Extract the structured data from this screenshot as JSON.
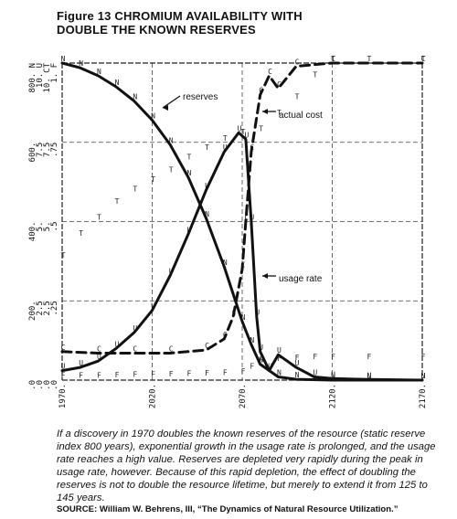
{
  "title": {
    "line1": "Figure 13 CHROMIUM AVAILABILITY WITH",
    "line2": "DOUBLE THE KNOWN RESERVES"
  },
  "caption": "If a discovery in 1970 doubles the known reserves of the resource (static reserve index 800 years), exponential growth in the usage rate is prolonged, and the usage rate reaches a high value. Reserves are depleted very rapidly during the peak in usage rate, however. Because of this rapid depletion, the effect of doubling the reserves is not to double the resource lifetime, but merely to extend it from 125 to 145 years.",
  "source": "SOURCE: William W. Behrens, III, “The Dynamics of Natural Resource Utilization.”",
  "chart_data": {
    "type": "line",
    "x_ticks": [
      "1970.",
      "2020.",
      "2070.",
      "2120.",
      "2170."
    ],
    "y_tick_columns": [
      [
        "800. N",
        "10. U",
        "10. CT",
        "1. F"
      ],
      [
        "600.",
        "7.5",
        "7.5",
        ".75"
      ],
      [
        "400.",
        "5.",
        "5.",
        ".5"
      ],
      [
        "200.",
        "2.5",
        "2.5",
        ".25"
      ],
      [
        ".0",
        ".0",
        ".0",
        ".0"
      ]
    ],
    "xlim": [
      1970,
      2170
    ],
    "ylim_reserves": [
      0,
      800
    ],
    "grid": true,
    "annotations": [
      "reserves",
      "actual cost",
      "usage rate"
    ],
    "series": [
      {
        "name": "reserves",
        "marker": "N",
        "style": "solid",
        "x": [
          1970,
          1980,
          1990,
          2000,
          2010,
          2020,
          2030,
          2040,
          2050,
          2060,
          2070,
          2075,
          2080,
          2090,
          2100,
          2120,
          2140,
          2170
        ],
        "y": [
          800,
          788,
          768,
          740,
          704,
          656,
          594,
          512,
          408,
          286,
          148,
          90,
          40,
          8,
          2,
          0,
          0,
          0
        ]
      },
      {
        "name": "usage rate",
        "marker": "U",
        "style": "solid",
        "x": [
          1970,
          1980,
          1990,
          2000,
          2010,
          2020,
          2030,
          2040,
          2050,
          2060,
          2068,
          2072,
          2075,
          2078,
          2080,
          2085,
          2090,
          2100,
          2110,
          2120,
          2140,
          2170
        ],
        "y": [
          0.3,
          0.4,
          0.6,
          1.0,
          1.5,
          2.2,
          3.3,
          4.6,
          6.0,
          7.2,
          7.8,
          7.6,
          5.0,
          2.0,
          0.9,
          0.3,
          0.8,
          0.4,
          0.1,
          0.05,
          0.02,
          0
        ],
        "units": "usage-rate scale (0-10)"
      },
      {
        "name": "actual cost",
        "marker": "C",
        "style": "dashed",
        "x": [
          1970,
          1990,
          2010,
          2030,
          2050,
          2060,
          2065,
          2070,
          2072,
          2075,
          2080,
          2085,
          2090,
          2100,
          2120,
          2170
        ],
        "y": [
          0.9,
          0.85,
          0.85,
          0.85,
          0.95,
          1.3,
          2.0,
          3.5,
          5.0,
          7.2,
          9.0,
          9.6,
          9.2,
          9.9,
          10,
          10
        ],
        "units": "cost scale (0-10)"
      },
      {
        "name": "T",
        "marker": "T",
        "style": "marker-only",
        "x": [
          1970,
          1980,
          1990,
          2000,
          2010,
          2020,
          2030,
          2040,
          2050,
          2060,
          2070,
          2080,
          2090,
          2100,
          2110,
          2120,
          2140,
          2170
        ],
        "y": [
          3.8,
          4.5,
          5.0,
          5.5,
          5.9,
          6.2,
          6.5,
          6.9,
          7.2,
          7.5,
          7.7,
          7.8,
          8.3,
          8.8,
          9.5,
          10,
          10,
          10
        ]
      },
      {
        "name": "F",
        "marker": "F",
        "style": "marker-only",
        "x": [
          1970,
          1980,
          1990,
          2000,
          2010,
          2020,
          2030,
          2040,
          2050,
          2060,
          2070,
          2075,
          2080,
          2090,
          2100,
          2110,
          2120,
          2140,
          2170
        ],
        "y": [
          0.02,
          0.02,
          0.02,
          0.03,
          0.04,
          0.05,
          0.06,
          0.07,
          0.08,
          0.1,
          0.15,
          0.3,
          0.5,
          0.55,
          0.58,
          0.6,
          0.6,
          0.6,
          0.6
        ]
      }
    ]
  }
}
